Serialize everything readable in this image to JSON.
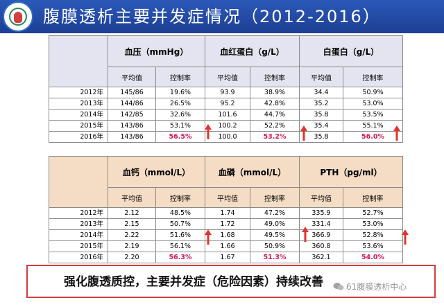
{
  "slide": {
    "title": "腹膜透析主要并发症情况（2012-2016）",
    "conclusion": "强化腹透质控，主要并发症（危险因素）持续改善",
    "watermark": "61腹膜透析中心"
  },
  "table1": {
    "groups": [
      {
        "label": "血压（mmHg）",
        "avg_label": "平均值",
        "rate_label": "控制率"
      },
      {
        "label": "血红蛋白（g/L）",
        "avg_label": "平均值",
        "rate_label": "控制率"
      },
      {
        "label": "白蛋白（g/L）",
        "avg_label": "平均值",
        "rate_label": "控制率"
      }
    ],
    "rows": [
      {
        "year": "2012年",
        "cells": [
          "145/86",
          "19.6%",
          "93.9",
          "38.9%",
          "34.4",
          "50.9%"
        ]
      },
      {
        "year": "2013年",
        "cells": [
          "144/86",
          "26.5%",
          "95.2",
          "42.8%",
          "35.2",
          "53.0%"
        ]
      },
      {
        "year": "2014年",
        "cells": [
          "142/85",
          "32.6%",
          "101.6",
          "44.7%",
          "35.8",
          "53.5%"
        ]
      },
      {
        "year": "2015年",
        "cells": [
          "143/86",
          "53.1%",
          "100.2",
          "52.2%",
          "35.4",
          "55.1%"
        ]
      },
      {
        "year": "2016年",
        "cells": [
          "143/86",
          "56.5%",
          "100.0",
          "53.2%",
          "35.8",
          "56.0%"
        ]
      }
    ]
  },
  "table2": {
    "groups": [
      {
        "label": "血钙（mmol/L）",
        "avg_label": "平均值",
        "rate_label": "控制率"
      },
      {
        "label": "血磷（mmol/L）",
        "avg_label": "平均值",
        "rate_label": "控制率"
      },
      {
        "label": "PTH（pg/ml）",
        "avg_label": "平均值",
        "rate_label": "控制率"
      }
    ],
    "rows": [
      {
        "year": "2012年",
        "cells": [
          "2.12",
          "48.5%",
          "1.74",
          "47.2%",
          "335.9",
          "52.7%"
        ]
      },
      {
        "year": "2013年",
        "cells": [
          "2.15",
          "50.7%",
          "1.72",
          "49.0%",
          "331.4",
          "53.0%"
        ]
      },
      {
        "year": "2014年",
        "cells": [
          "2.22",
          "51.6%",
          "1.68",
          "49.5%",
          "366.9",
          "52.8%"
        ]
      },
      {
        "year": "2015年",
        "cells": [
          "2.19",
          "56.1%",
          "1.66",
          "50.9%",
          "360.8",
          "53.6%"
        ]
      },
      {
        "year": "2016年",
        "cells": [
          "2.20",
          "56.3%",
          "1.67",
          "51.3%",
          "362.1",
          "54.0%"
        ]
      }
    ]
  },
  "colors": {
    "header_blue": "#2b58b8",
    "table1_header_bg": "#e4e4f0",
    "table2_header_bg": "#f5dcc4",
    "highlight": "#d2145a",
    "arrow": "#e0342c",
    "conclusion_border": "#d33d3d"
  }
}
